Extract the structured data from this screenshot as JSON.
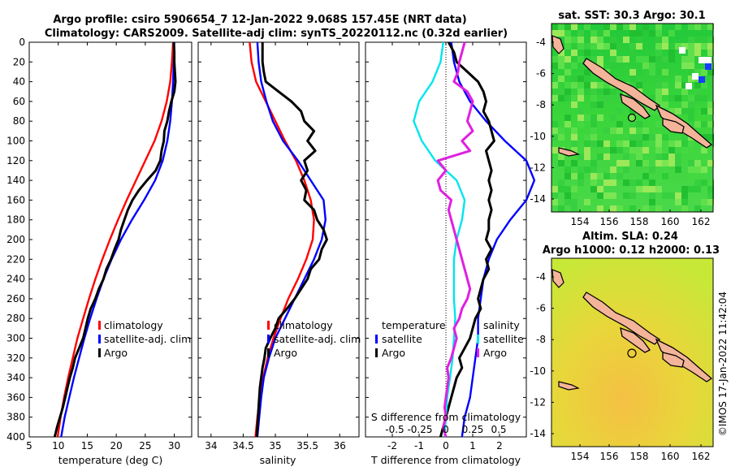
{
  "title_line1": "Argo profile: csiro 5906654_7 12-Jan-2022 9.068S 157.45E (NRT data)",
  "title_line2": "Climatology: CARS2009. Satellite-adj clim: synTS_20220112.nc (0.32d earlier)",
  "depth_ticks": [
    "0",
    "20",
    "40",
    "60",
    "80",
    "100",
    "120",
    "140",
    "160",
    "180",
    "200",
    "220",
    "240",
    "260",
    "280",
    "300",
    "320",
    "340",
    "360",
    "380",
    "400"
  ],
  "colors": {
    "climatology": "#ff0000",
    "satellite": "#0000ff",
    "argo": "#000000",
    "salinity": "#00e5ee",
    "salinity_diff": "#e020e0"
  },
  "map1": {
    "title": "sat. SST: 30.3 Argo: 30.1",
    "x_ticks": [
      "154",
      "156",
      "158",
      "160",
      "162"
    ],
    "y_ticks": [
      "-4",
      "-6",
      "-8",
      "-10",
      "-12",
      "-14"
    ]
  },
  "map2": {
    "title_line1": "Altim. SLA: 0.24",
    "title_line2": "Argo h1000: 0.12 h2000: 0.13",
    "x_ticks": [
      "154",
      "156",
      "158",
      "160",
      "162"
    ],
    "y_ticks": [
      "-4",
      "-6",
      "-8",
      "-10",
      "-12",
      "-14"
    ]
  },
  "watermark": "©IMOS 17-Jan-2022 11:42:04",
  "chart_data": [
    {
      "type": "line",
      "xlabel": "temperature (deg C)",
      "xlim": [
        5,
        33
      ],
      "ylim": [
        400,
        0
      ],
      "x_ticks": [
        "5",
        "10",
        "15",
        "20",
        "25",
        "30"
      ],
      "legend": [
        "climatology",
        "satellite-adj. clim",
        "Argo"
      ],
      "series": [
        {
          "name": "climatology",
          "depth": [
            0,
            20,
            40,
            60,
            80,
            100,
            120,
            140,
            160,
            180,
            200,
            220,
            240,
            260,
            280,
            300,
            320,
            340,
            360,
            380,
            400
          ],
          "values": [
            29.8,
            29.6,
            29.3,
            28.7,
            27.8,
            26.6,
            25.0,
            23.4,
            21.8,
            20.3,
            18.9,
            17.6,
            16.4,
            15.3,
            14.3,
            13.3,
            12.5,
            11.7,
            11.0,
            10.4,
            9.9
          ]
        },
        {
          "name": "satellite-adj. clim",
          "depth": [
            0,
            20,
            40,
            60,
            80,
            100,
            120,
            140,
            160,
            180,
            200,
            220,
            240,
            260,
            280,
            300,
            320,
            340,
            360,
            380,
            400
          ],
          "values": [
            30.0,
            29.9,
            29.8,
            29.6,
            29.3,
            28.8,
            28.0,
            26.7,
            24.8,
            22.7,
            20.8,
            19.2,
            17.8,
            16.6,
            15.5,
            14.5,
            13.6,
            12.7,
            11.9,
            11.1,
            10.5
          ]
        },
        {
          "name": "Argo",
          "depth": [
            0,
            10,
            20,
            30,
            40,
            50,
            60,
            70,
            80,
            90,
            100,
            110,
            120,
            130,
            140,
            150,
            160,
            170,
            180,
            190,
            200,
            210,
            220,
            230,
            240,
            250,
            260,
            270,
            280,
            290,
            300,
            310,
            320,
            330,
            340,
            350,
            360,
            370,
            380,
            390,
            400
          ],
          "values": [
            29.9,
            30.0,
            30.0,
            30.1,
            30.2,
            30.0,
            29.5,
            29.1,
            28.8,
            28.3,
            28.2,
            27.8,
            27.6,
            26.8,
            25.3,
            23.9,
            22.8,
            22.0,
            21.4,
            20.8,
            20.4,
            19.7,
            19.1,
            18.3,
            17.8,
            17.0,
            16.4,
            15.6,
            15.1,
            14.7,
            14.3,
            13.6,
            12.9,
            12.5,
            12.0,
            11.6,
            11.2,
            10.8,
            10.3,
            9.8,
            9.4
          ]
        }
      ]
    },
    {
      "type": "line",
      "xlabel": "salinity",
      "xlim": [
        33.8,
        36.3
      ],
      "ylim": [
        400,
        0
      ],
      "x_ticks": [
        "34",
        "34.5",
        "35",
        "35.5",
        "36"
      ],
      "legend": [
        "climatology",
        "satellite-adj. clim",
        "Argo"
      ],
      "series": [
        {
          "name": "climatology",
          "depth": [
            0,
            20,
            40,
            60,
            80,
            100,
            120,
            140,
            160,
            180,
            200,
            220,
            240,
            260,
            280,
            300,
            320,
            340,
            360,
            380,
            400
          ],
          "values": [
            34.6,
            34.63,
            34.7,
            34.85,
            35.0,
            35.15,
            35.32,
            35.45,
            35.55,
            35.6,
            35.58,
            35.48,
            35.35,
            35.2,
            35.08,
            34.97,
            34.88,
            34.81,
            34.76,
            34.72,
            34.69
          ]
        },
        {
          "name": "satellite-adj. clim",
          "depth": [
            0,
            20,
            40,
            60,
            80,
            100,
            120,
            140,
            160,
            180,
            200,
            220,
            240,
            260,
            280,
            300,
            320,
            340,
            360,
            380,
            400
          ],
          "values": [
            34.72,
            34.74,
            34.78,
            34.86,
            34.96,
            35.12,
            35.35,
            35.55,
            35.75,
            35.78,
            35.72,
            35.6,
            35.45,
            35.3,
            35.15,
            35.0,
            34.9,
            34.82,
            34.78,
            34.75,
            34.72
          ]
        },
        {
          "name": "Argo",
          "depth": [
            0,
            10,
            20,
            30,
            40,
            50,
            60,
            70,
            80,
            90,
            100,
            110,
            120,
            130,
            140,
            150,
            160,
            170,
            180,
            190,
            200,
            210,
            220,
            230,
            240,
            250,
            260,
            270,
            280,
            290,
            300,
            310,
            320,
            330,
            340,
            350,
            360,
            370,
            380,
            390,
            400
          ],
          "values": [
            34.8,
            34.8,
            34.8,
            34.82,
            34.85,
            35.05,
            35.25,
            35.4,
            35.45,
            35.6,
            35.5,
            35.62,
            35.45,
            35.5,
            35.4,
            35.48,
            35.45,
            35.6,
            35.65,
            35.75,
            35.8,
            35.72,
            35.68,
            35.55,
            35.5,
            35.4,
            35.3,
            35.18,
            35.05,
            35.0,
            34.92,
            34.85,
            34.83,
            34.8,
            34.78,
            34.76,
            34.75,
            34.74,
            34.73,
            34.72,
            34.71
          ]
        }
      ]
    },
    {
      "type": "line",
      "xlabel": "T difference from climatology",
      "xlim": [
        -3,
        3
      ],
      "ylim": [
        400,
        0
      ],
      "x_ticks": [
        "-2",
        "-1",
        "0",
        "1",
        "2"
      ],
      "top_xlabel": "S difference from climatology",
      "top_x_ticks": [
        "-0.5",
        "-0.25",
        "0",
        "0.25",
        "0.5"
      ],
      "legend": [
        "temperature",
        "satellite",
        "Argo",
        "salinity",
        "satellite",
        "Argo"
      ],
      "series": [
        {
          "name": "temperature satellite",
          "depth": [
            0,
            20,
            40,
            60,
            80,
            100,
            120,
            140,
            160,
            180,
            200,
            220,
            240,
            260,
            280,
            300,
            320,
            340,
            360,
            380,
            400
          ],
          "values": [
            0.2,
            0.3,
            0.5,
            0.9,
            1.5,
            2.2,
            3.0,
            3.3,
            3.0,
            2.4,
            1.9,
            1.6,
            1.4,
            1.3,
            1.2,
            1.2,
            1.1,
            1.0,
            0.9,
            0.7,
            0.6
          ]
        },
        {
          "name": "temperature Argo",
          "depth": [
            0,
            10,
            20,
            30,
            40,
            50,
            60,
            70,
            80,
            90,
            100,
            110,
            120,
            130,
            140,
            150,
            160,
            170,
            180,
            190,
            200,
            210,
            220,
            230,
            240,
            250,
            260,
            270,
            280,
            290,
            300,
            310,
            320,
            330,
            340,
            350,
            360,
            370,
            380,
            390,
            400
          ],
          "values": [
            0.1,
            0.3,
            0.4,
            0.8,
            1.2,
            1.4,
            1.5,
            1.4,
            1.6,
            1.7,
            1.8,
            1.5,
            1.6,
            1.7,
            1.6,
            1.7,
            1.6,
            1.7,
            1.6,
            1.6,
            1.5,
            1.7,
            1.5,
            1.6,
            1.4,
            1.3,
            1.2,
            1.3,
            1.1,
            1.0,
            0.9,
            0.7,
            0.5,
            0.6,
            0.4,
            0.3,
            0.2,
            0.1,
            0.0,
            -0.1,
            -0.2
          ]
        },
        {
          "name": "salinity satellite",
          "depth": [
            0,
            20,
            40,
            60,
            80,
            100,
            120,
            140,
            160,
            180,
            200,
            220,
            240,
            260,
            280,
            300,
            320,
            340,
            360,
            380,
            400
          ],
          "values": [
            -0.1,
            -0.2,
            -0.5,
            -1.0,
            -1.2,
            -0.9,
            -0.4,
            0.4,
            0.7,
            0.6,
            0.4,
            0.3,
            0.3,
            0.3,
            0.35,
            0.3,
            0.25,
            0.15,
            0.05,
            0.0,
            -0.05
          ]
        },
        {
          "name": "salinity Argo",
          "depth": [
            0,
            10,
            20,
            30,
            40,
            50,
            60,
            70,
            80,
            90,
            100,
            110,
            120,
            130,
            140,
            150,
            160,
            170,
            180,
            190,
            200,
            210,
            220,
            230,
            240,
            250,
            260,
            270,
            280,
            290,
            300,
            310,
            320,
            330,
            340,
            350,
            360,
            370,
            380,
            390,
            400
          ],
          "values": [
            0.7,
            0.6,
            0.5,
            0.45,
            0.3,
            0.8,
            1.0,
            0.9,
            0.8,
            1.0,
            0.6,
            0.9,
            -0.3,
            0.0,
            -0.3,
            -0.2,
            0.2,
            0.1,
            0.2,
            0.3,
            0.4,
            0.5,
            0.6,
            0.7,
            0.8,
            0.9,
            0.8,
            0.6,
            0.5,
            0.3,
            0.4,
            0.3,
            0.2,
            0.05,
            0.1,
            0.05,
            0.0,
            -0.05,
            0.0,
            -0.1,
            0.0
          ]
        }
      ]
    }
  ]
}
